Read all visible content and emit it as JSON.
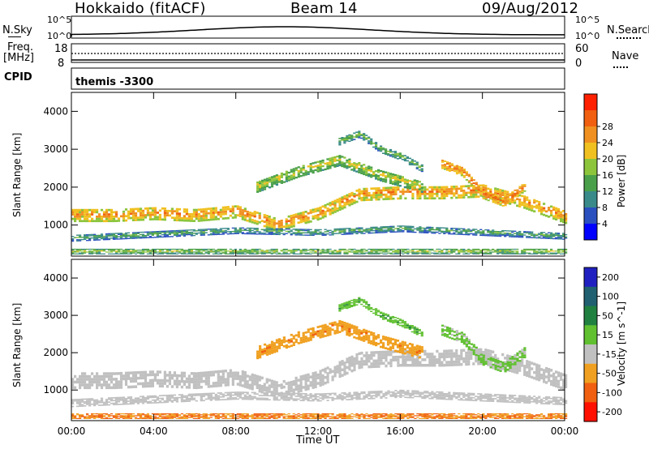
{
  "header": {
    "title_left": "Hokkaido (fitACF)",
    "title_center": "Beam 14",
    "title_right": "09/Aug/2012"
  },
  "top_panel": {
    "n_sky_label": "N.Sky",
    "n_search_label": "N.Search",
    "y_top_left": "10^5",
    "y_bottom_left": "10^0",
    "y_top_right": "10^5",
    "y_bottom_right": "10^0",
    "freq_label_1": "Freq.",
    "freq_label_2": "[MHz]",
    "freq_top": "18",
    "freq_bottom": "8",
    "nave_label": "Nave",
    "nave_top": "60",
    "nave_bottom": "0",
    "cpid_label": "CPID",
    "cpid_value": "themis -3300"
  },
  "chart_data": [
    {
      "type": "heatmap",
      "name": "Power",
      "ylabel": "Slant Range [km]",
      "xlabel": "Time UT",
      "yticks": [
        1000,
        2000,
        3000,
        4000
      ],
      "ylim": [
        180,
        4500
      ],
      "xticks": [
        "00:00",
        "04:00",
        "08:00",
        "12:00",
        "16:00",
        "20:00",
        "00:00"
      ],
      "xlim_hours": [
        0,
        24
      ],
      "colorbar": {
        "label": "Power [dB]",
        "ticks": [
          "4",
          "8",
          "12",
          "16",
          "20",
          "24",
          "28"
        ],
        "colors": [
          "#0000ff",
          "#2a4fbf",
          "#3a8a8a",
          "#4aa04a",
          "#8cc43c",
          "#f0c020",
          "#f09020",
          "#f06010",
          "#ff2000"
        ]
      },
      "bands": [
        {
          "t": [
            0,
            2,
            4,
            6,
            8,
            10,
            12,
            14,
            16,
            18,
            20,
            22,
            24
          ],
          "r": [
            1250,
            1250,
            1300,
            1250,
            1350,
            1000,
            1300,
            1800,
            1850,
            1850,
            1900,
            1600,
            1200
          ],
          "thickness": 350,
          "level": 24
        },
        {
          "t": [
            0,
            4,
            8,
            12,
            16,
            20,
            24
          ],
          "r": [
            650,
            750,
            850,
            800,
            900,
            800,
            700
          ],
          "thickness": 180,
          "level": 12
        },
        {
          "t": [
            9,
            11,
            13,
            15,
            17
          ],
          "r": [
            2000,
            2400,
            2700,
            2300,
            2000
          ],
          "thickness": 300,
          "level": 18
        },
        {
          "t": [
            18,
            19,
            20,
            21,
            22
          ],
          "r": [
            2600,
            2400,
            1800,
            1600,
            2000
          ],
          "thickness": 250,
          "level": 26
        },
        {
          "t": [
            13,
            14,
            15,
            16,
            17
          ],
          "r": [
            3200,
            3400,
            3000,
            2800,
            2500
          ],
          "thickness": 200,
          "level": 14
        },
        {
          "t": [
            0,
            6,
            12,
            18,
            24
          ],
          "r": [
            300,
            300,
            300,
            300,
            300
          ],
          "thickness": 150,
          "level": 16
        }
      ]
    },
    {
      "type": "heatmap",
      "name": "Velocity",
      "ylabel": "Slant Range [km]",
      "xlabel": "Time UT",
      "yticks": [
        1000,
        2000,
        3000,
        4000
      ],
      "ylim": [
        180,
        4500
      ],
      "xticks": [
        "00:00",
        "04:00",
        "08:00",
        "12:00",
        "16:00",
        "20:00",
        "00:00"
      ],
      "xlim_hours": [
        0,
        24
      ],
      "colorbar": {
        "label": "Velocity [m s^-1]",
        "ticks": [
          "200",
          "100",
          "50",
          "15",
          "-15",
          "-50",
          "-100",
          "-200"
        ],
        "colors": [
          "#2020c0",
          "#206070",
          "#208040",
          "#60c030",
          "#c0c0c0",
          "#f0a020",
          "#f06010",
          "#ff1000"
        ]
      },
      "bands": [
        {
          "t": [
            0,
            2,
            4,
            6,
            8,
            10,
            12,
            14,
            16,
            18,
            20,
            22,
            24
          ],
          "r": [
            1250,
            1250,
            1300,
            1250,
            1350,
            1000,
            1300,
            1800,
            1850,
            1850,
            1900,
            1600,
            1200
          ],
          "thickness": 450,
          "level": 0
        },
        {
          "t": [
            0,
            4,
            8,
            12,
            16,
            20,
            24
          ],
          "r": [
            650,
            750,
            850,
            800,
            900,
            800,
            700
          ],
          "thickness": 220,
          "level": 0
        },
        {
          "t": [
            9,
            11,
            13,
            15,
            17
          ],
          "r": [
            2000,
            2400,
            2700,
            2300,
            2000
          ],
          "thickness": 350,
          "level": -40
        },
        {
          "t": [
            18,
            19,
            20,
            21,
            22
          ],
          "r": [
            2600,
            2400,
            1800,
            1600,
            2000
          ],
          "thickness": 300,
          "level": 20
        },
        {
          "t": [
            13,
            14,
            15,
            16,
            17
          ],
          "r": [
            3200,
            3400,
            3000,
            2800,
            2500
          ],
          "thickness": 200,
          "level": 40
        },
        {
          "t": [
            0,
            6,
            12,
            18,
            24
          ],
          "r": [
            300,
            300,
            300,
            300,
            300
          ],
          "thickness": 150,
          "level": -50
        }
      ]
    }
  ]
}
